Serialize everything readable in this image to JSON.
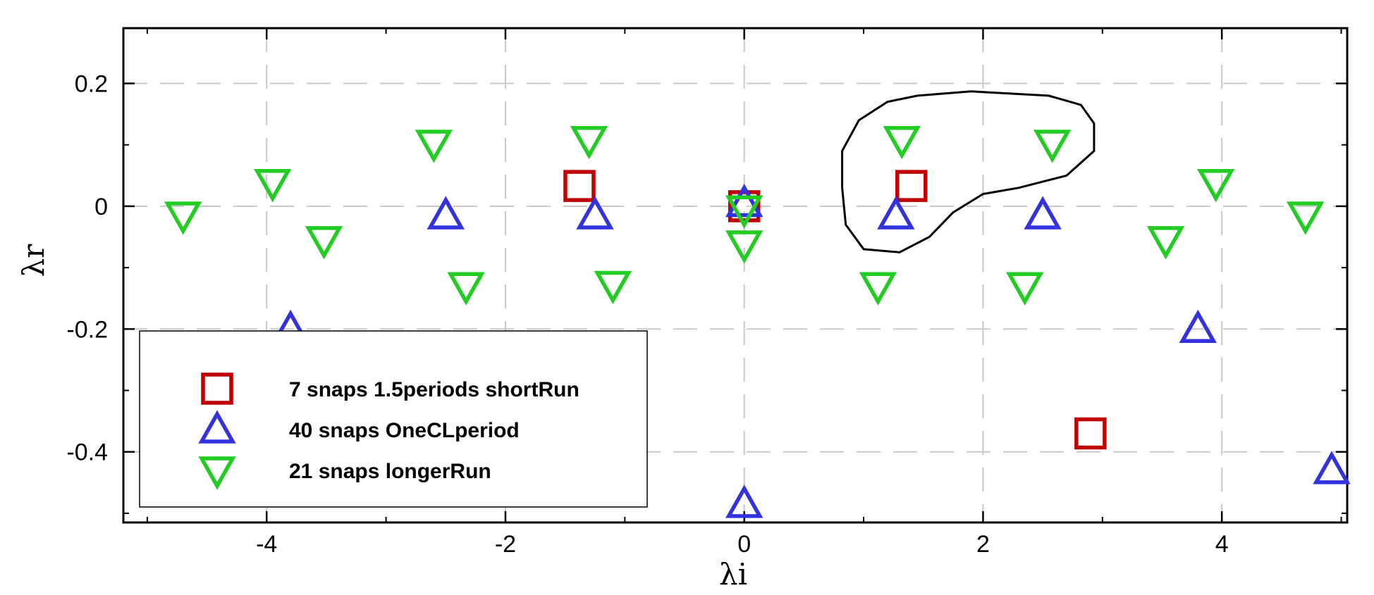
{
  "chart_data": {
    "type": "scatter",
    "xlabel": "λi",
    "ylabel": "λr",
    "xlim": [
      -5.2,
      5.05
    ],
    "ylim": [
      -0.515,
      0.29
    ],
    "xticks": [
      -4,
      -2,
      0,
      2,
      4
    ],
    "yticks": [
      -0.4,
      -0.2,
      0,
      0.2
    ],
    "xtick_labels": [
      "-4",
      "-2",
      "0",
      "2",
      "4"
    ],
    "ytick_labels": [
      "-0.4",
      "-0.2",
      "0",
      "0.2"
    ],
    "grid": true,
    "legend_position": "bottom-left",
    "series": [
      {
        "name": "7 snaps 1.5periods shortRun",
        "marker": "square",
        "color": "#c00000",
        "points": [
          [
            -1.38,
            0.033
          ],
          [
            0.0,
            0.0
          ],
          [
            1.4,
            0.033
          ],
          [
            2.9,
            -0.37
          ]
        ]
      },
      {
        "name": "40 snaps OneCLperiod",
        "marker": "triangle-up",
        "color": "#3333dd",
        "points": [
          [
            -3.8,
            -0.2
          ],
          [
            -2.5,
            -0.015
          ],
          [
            -1.25,
            -0.015
          ],
          [
            0.0,
            0.005
          ],
          [
            1.27,
            -0.015
          ],
          [
            2.5,
            -0.015
          ],
          [
            3.8,
            -0.2
          ],
          [
            4.92,
            -0.43
          ],
          [
            0.0,
            -0.485
          ]
        ]
      },
      {
        "name": "21 snaps longerRun",
        "marker": "triangle-down",
        "color": "#22cc22",
        "points": [
          [
            -4.7,
            -0.015
          ],
          [
            -3.95,
            0.038
          ],
          [
            -3.52,
            -0.055
          ],
          [
            -2.6,
            0.102
          ],
          [
            -2.33,
            -0.13
          ],
          [
            -1.3,
            0.108
          ],
          [
            -1.1,
            -0.128
          ],
          [
            0.0,
            -0.005
          ],
          [
            0.0,
            -0.062
          ],
          [
            1.12,
            -0.13
          ],
          [
            1.32,
            0.108
          ],
          [
            2.35,
            -0.13
          ],
          [
            2.58,
            0.102
          ],
          [
            3.53,
            -0.055
          ],
          [
            3.95,
            0.038
          ],
          [
            4.7,
            -0.015
          ]
        ]
      }
    ],
    "contour": [
      [
        0.82,
        0.09
      ],
      [
        0.96,
        0.14
      ],
      [
        1.2,
        0.17
      ],
      [
        1.45,
        0.18
      ],
      [
        1.9,
        0.187
      ],
      [
        2.55,
        0.18
      ],
      [
        2.82,
        0.165
      ],
      [
        2.93,
        0.135
      ],
      [
        2.93,
        0.09
      ],
      [
        2.7,
        0.05
      ],
      [
        2.3,
        0.03
      ],
      [
        2.0,
        0.02
      ],
      [
        1.75,
        -0.01
      ],
      [
        1.55,
        -0.05
      ],
      [
        1.3,
        -0.075
      ],
      [
        1.0,
        -0.07
      ],
      [
        0.85,
        -0.03
      ],
      [
        0.82,
        0.03
      ]
    ],
    "contour_color": "#000000"
  }
}
